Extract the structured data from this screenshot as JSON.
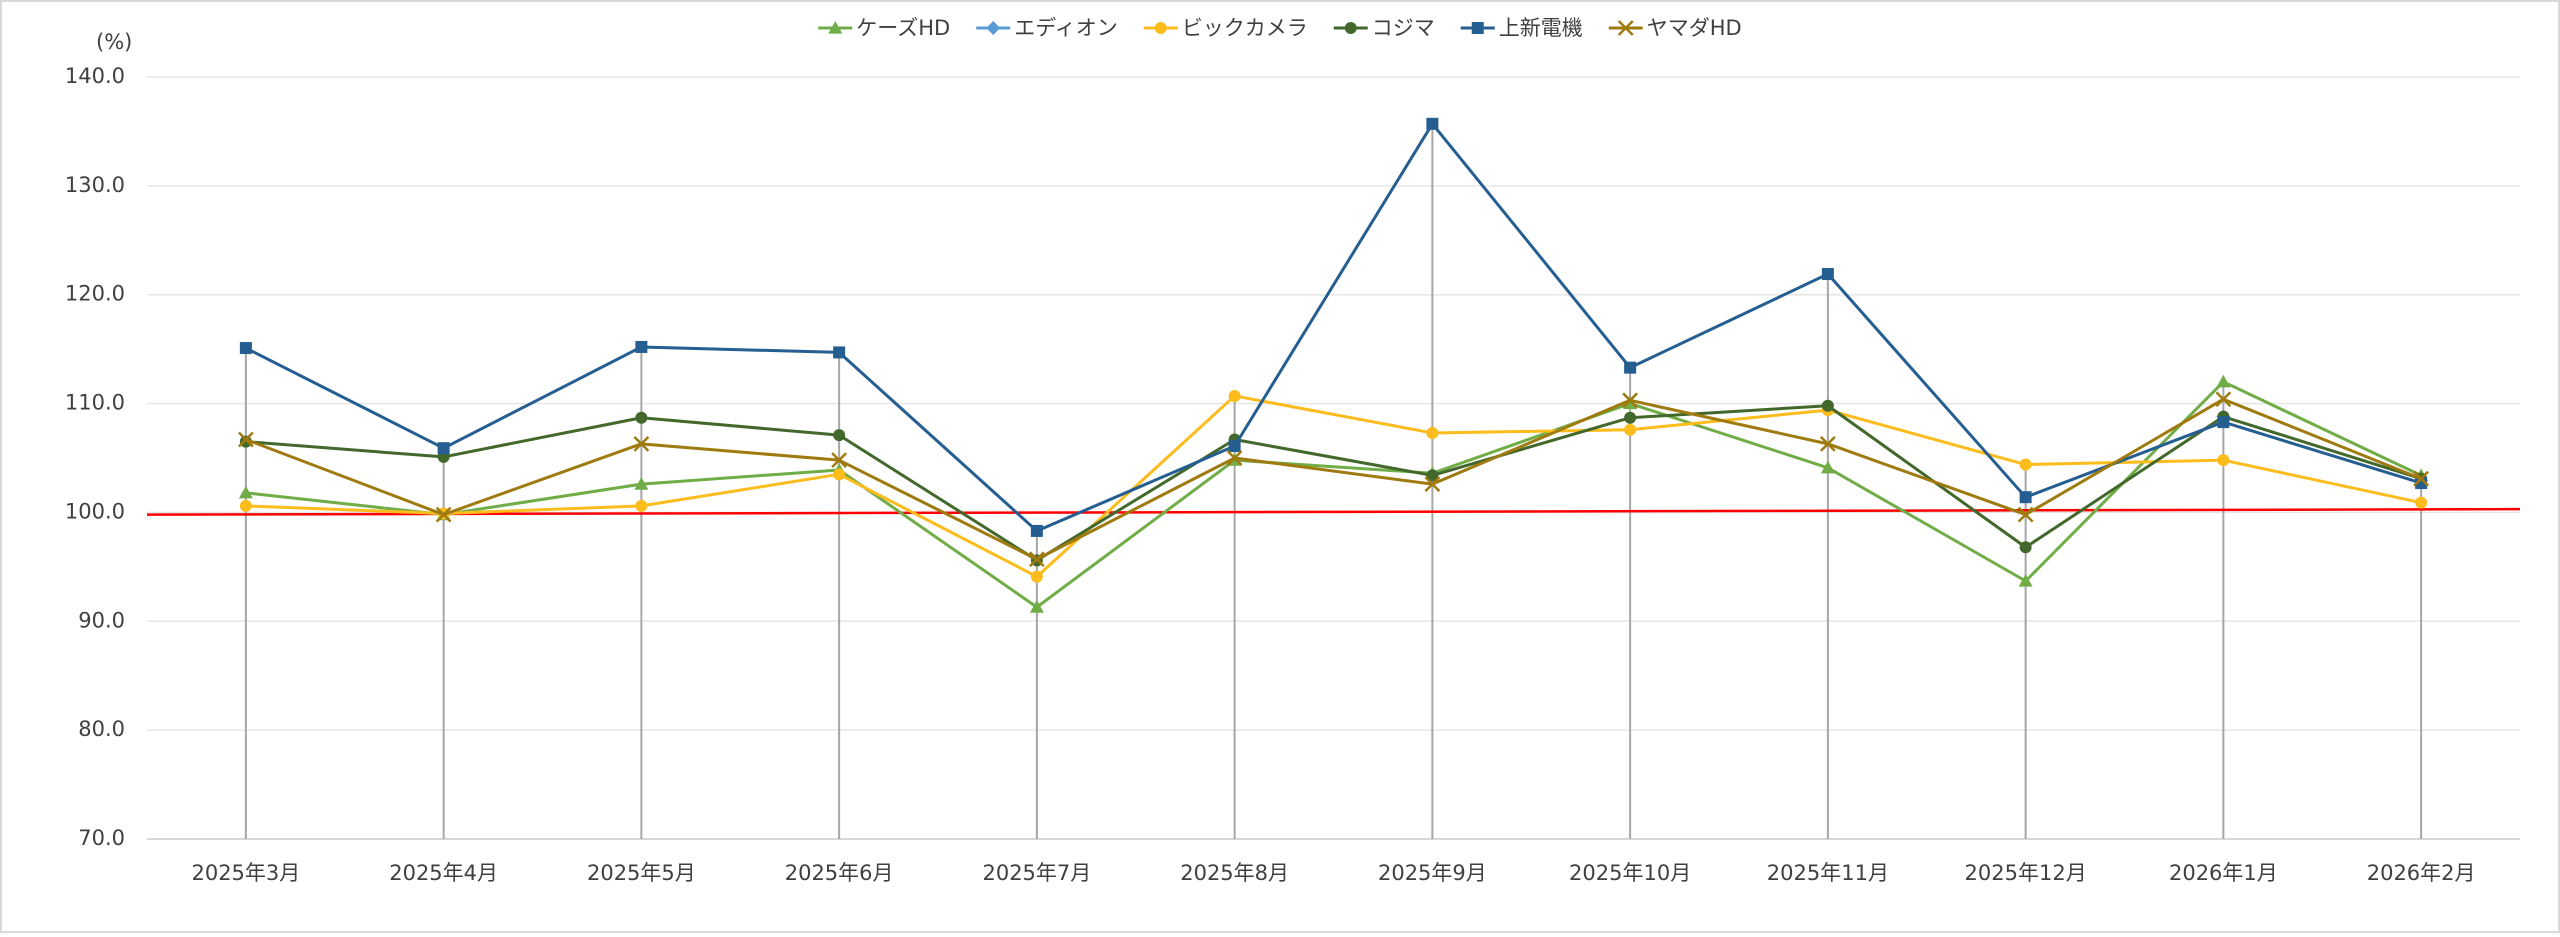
{
  "chart_data": {
    "type": "line",
    "unit_label": "(%)",
    "categories": [
      "2025年3月",
      "2025年4月",
      "2025年5月",
      "2025年6月",
      "2025年7月",
      "2025年8月",
      "2025年9月",
      "2025年10月",
      "2025年11月",
      "2025年12月",
      "2026年1月",
      "2026年2月"
    ],
    "series": [
      {
        "name": "ケーズHD",
        "color": "#70ad47",
        "marker": "triangle",
        "values": [
          101.8,
          99.8,
          102.6,
          103.9,
          91.3,
          104.8,
          103.6,
          110.0,
          104.1,
          93.7,
          112.0,
          103.4
        ]
      },
      {
        "name": "エディオン",
        "color": "#5b9bd5",
        "marker": "diamond",
        "values": [
          null,
          null,
          null,
          null,
          null,
          null,
          null,
          null,
          null,
          null,
          108.8,
          null
        ]
      },
      {
        "name": "ビックカメラ",
        "color": "#fbbc1c",
        "marker": "circle",
        "values": [
          100.6,
          99.9,
          100.6,
          103.5,
          94.1,
          110.7,
          107.3,
          107.6,
          109.4,
          104.4,
          104.8,
          100.9
        ]
      },
      {
        "name": "コジマ",
        "color": "#43682b",
        "marker": "circle",
        "values": [
          106.5,
          105.1,
          108.7,
          107.1,
          95.6,
          106.7,
          103.4,
          108.7,
          109.8,
          96.8,
          108.8,
          103.1
        ]
      },
      {
        "name": "上新電機",
        "color": "#255e91",
        "marker": "square",
        "values": [
          115.1,
          105.9,
          115.2,
          114.7,
          98.3,
          106.1,
          135.7,
          113.3,
          121.9,
          101.4,
          108.3,
          102.7
        ]
      },
      {
        "name": "ヤマダHD",
        "color": "#9e7a0f",
        "marker": "x",
        "values": [
          106.7,
          99.8,
          106.3,
          104.8,
          95.7,
          105.0,
          102.6,
          110.3,
          106.3,
          99.8,
          110.4,
          103.1
        ]
      }
    ],
    "reference_line": {
      "color": "#ff0000",
      "values": [
        99.8,
        100.3
      ]
    },
    "ylim": [
      70,
      140
    ],
    "yticks": [
      {
        "value": 70,
        "label": "70.0"
      },
      {
        "value": 80,
        "label": "80.0"
      },
      {
        "value": 90,
        "label": "90.0"
      },
      {
        "value": 100,
        "label": "100.0"
      },
      {
        "value": 110,
        "label": "110.0"
      },
      {
        "value": 120,
        "label": "120.0"
      },
      {
        "value": 130,
        "label": "130.0"
      },
      {
        "value": 140,
        "label": "140.0"
      }
    ],
    "grid": true,
    "drop_lines": true,
    "legend": "top"
  }
}
